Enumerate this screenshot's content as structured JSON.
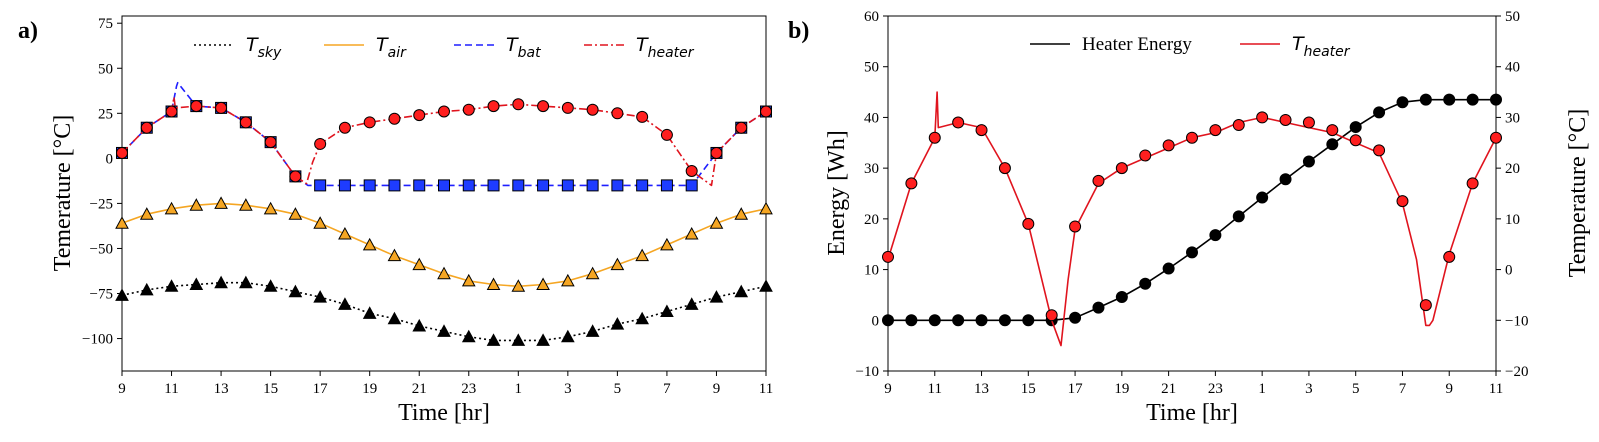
{
  "chart_data": [
    {
      "panel_label": "a)",
      "type": "line",
      "xlabel": "Time [hr]",
      "ylabel": "Temerature [°C]",
      "x_ticks": [
        "9",
        "11",
        "13",
        "15",
        "17",
        "19",
        "21",
        "23",
        "1",
        "3",
        "5",
        "7",
        "9",
        "11"
      ],
      "y_ticks": [
        75,
        50,
        25,
        0,
        -25,
        -50,
        -75,
        -100
      ],
      "xlim": [
        9,
        35
      ],
      "ylim": [
        -118,
        79
      ],
      "grid": false,
      "legend_position": "top",
      "series": [
        {
          "name_main": "T",
          "name_sub": "sky",
          "color": "#000000",
          "style": "dotted",
          "marker": "triangle",
          "marker_fill": "#000000",
          "x": [
            9,
            10,
            11,
            12,
            13,
            14,
            15,
            16,
            17,
            18,
            19,
            20,
            21,
            22,
            23,
            24,
            25,
            26,
            27,
            28,
            29,
            30,
            31,
            32,
            33,
            34,
            35
          ],
          "y": [
            -76,
            -73,
            -71,
            -70,
            -69,
            -69,
            -71,
            -74,
            -77,
            -81,
            -86,
            -89,
            -93,
            -96,
            -99,
            -101,
            -101,
            -101,
            -99,
            -96,
            -92,
            -89,
            -85,
            -81,
            -77,
            -74,
            -71
          ]
        },
        {
          "name_main": "T",
          "name_sub": "air",
          "color": "#f5a623",
          "style": "solid",
          "marker": "triangle",
          "marker_fill": "#f5a623",
          "x": [
            9,
            10,
            11,
            12,
            13,
            14,
            15,
            16,
            17,
            18,
            19,
            20,
            21,
            22,
            23,
            24,
            25,
            26,
            27,
            28,
            29,
            30,
            31,
            32,
            33,
            34,
            35
          ],
          "y": [
            -36,
            -31,
            -28,
            -26,
            -25,
            -26,
            -28,
            -31,
            -36,
            -42,
            -48,
            -54,
            -59,
            -64,
            -68,
            -70,
            -71,
            -70,
            -68,
            -64,
            -59,
            -54,
            -48,
            -42,
            -36,
            -31,
            -28
          ]
        },
        {
          "name_main": "T",
          "name_sub": "bat",
          "color": "#1f1fff",
          "style": "dashed",
          "marker": "square",
          "marker_fill": "#1e3cff",
          "x": [
            9,
            10,
            11,
            11.2,
            11.25,
            12,
            13,
            14,
            15,
            16,
            16.5,
            17,
            18,
            19,
            20,
            21,
            22,
            23,
            24,
            25,
            26,
            27,
            28,
            29,
            30,
            31,
            32,
            33,
            34,
            35
          ],
          "y": [
            3,
            17,
            26,
            40,
            42,
            29,
            28,
            20,
            9,
            -10,
            -15,
            -15,
            -15,
            -15,
            -15,
            -15,
            -15,
            -15,
            -15,
            -15,
            -15,
            -15,
            -15,
            -15,
            -15,
            -15,
            -15,
            3,
            17,
            26
          ],
          "markers_x": [
            9,
            10,
            11,
            12,
            13,
            14,
            15,
            16,
            17,
            18,
            19,
            20,
            21,
            22,
            23,
            24,
            25,
            26,
            27,
            28,
            29,
            30,
            31,
            32,
            33,
            34,
            35
          ],
          "markers_y": [
            3,
            17,
            26,
            29,
            28,
            20,
            9,
            -10,
            -15,
            -15,
            -15,
            -15,
            -15,
            -15,
            -15,
            -15,
            -15,
            -15,
            -15,
            -15,
            -15,
            -15,
            -15,
            -15,
            3,
            17,
            26
          ]
        },
        {
          "name_main": "T",
          "name_sub": "heater",
          "color": "#e0141e",
          "style": "dashdot",
          "marker": "circle",
          "marker_fill": "#ff1f1f",
          "x": [
            9,
            10,
            11,
            11.1,
            11.15,
            12,
            13,
            14,
            15,
            16,
            16.45,
            16.7,
            17,
            18,
            19,
            20,
            21,
            22,
            23,
            24,
            25,
            26,
            27,
            28,
            29,
            30,
            31,
            32,
            32.8,
            33,
            34,
            35
          ],
          "y": [
            3,
            17,
            26,
            34,
            28,
            29,
            28,
            20,
            9,
            -10,
            -14,
            -2,
            8,
            17,
            20,
            22,
            24,
            26,
            27,
            29,
            30,
            29,
            28,
            27,
            25,
            23,
            13,
            -7,
            -15,
            3,
            17,
            26
          ],
          "markers_x": [
            9,
            10,
            11,
            12,
            13,
            14,
            15,
            16,
            17,
            18,
            19,
            20,
            21,
            22,
            23,
            24,
            25,
            26,
            27,
            28,
            29,
            30,
            31,
            32,
            33,
            34,
            35
          ],
          "markers_y": [
            3,
            17,
            26,
            29,
            28,
            20,
            9,
            -10,
            8,
            17,
            20,
            22,
            24,
            26,
            27,
            29,
            30,
            29,
            28,
            27,
            25,
            23,
            13,
            -7,
            3,
            17,
            26
          ]
        }
      ]
    },
    {
      "panel_label": "b)",
      "type": "line",
      "xlabel": "Time [hr]",
      "ylabel": "Energy [Wh]",
      "ylabel_right": "Temperature [°C]",
      "x_ticks": [
        "9",
        "11",
        "13",
        "15",
        "17",
        "19",
        "21",
        "23",
        "1",
        "3",
        "5",
        "7",
        "9",
        "11"
      ],
      "y_ticks": [
        60,
        50,
        40,
        30,
        20,
        10,
        0,
        -10
      ],
      "y_ticks_right": [
        50,
        40,
        30,
        20,
        10,
        0,
        -10,
        -20
      ],
      "xlim": [
        9,
        35
      ],
      "ylim": [
        -10,
        60
      ],
      "ylim_right": [
        -20,
        50
      ],
      "grid": false,
      "legend_position": "top",
      "series": [
        {
          "name": "Heater Energy",
          "axis": "left",
          "color": "#000000",
          "style": "solid",
          "marker": "circle",
          "marker_fill": "#000000",
          "x": [
            9,
            10,
            11,
            12,
            13,
            14,
            15,
            16,
            17,
            18,
            19,
            20,
            21,
            22,
            23,
            24,
            25,
            26,
            27,
            28,
            29,
            30,
            31,
            32,
            33,
            34,
            35
          ],
          "y": [
            0,
            0,
            0,
            0,
            0,
            0,
            0,
            0,
            0.5,
            2.5,
            4.6,
            7.2,
            10.2,
            13.4,
            16.8,
            20.5,
            24.2,
            27.8,
            31.3,
            34.7,
            38.1,
            41,
            43,
            43.5,
            43.5,
            43.5,
            43.5
          ]
        },
        {
          "name_main": "T",
          "name_sub": "heater",
          "axis": "right",
          "color": "#e0141e",
          "style": "solid",
          "marker": "circle",
          "marker_fill": "#ff1f1f",
          "x": [
            9,
            10,
            11,
            11.1,
            11.15,
            12,
            13,
            14,
            15,
            16,
            16.4,
            16.7,
            17,
            18,
            19,
            20,
            21,
            22,
            23,
            24,
            25,
            26,
            27,
            28,
            29,
            30,
            31,
            31.6,
            32,
            32.15,
            32.3,
            33,
            34,
            35
          ],
          "y": [
            2,
            17,
            26,
            35,
            28,
            29,
            28,
            20,
            9,
            -10,
            -15,
            -2,
            8,
            17,
            20,
            22,
            24,
            26,
            27,
            29,
            30,
            29,
            28,
            27,
            25,
            23,
            13,
            2,
            -11,
            -11,
            -10,
            3,
            17,
            26
          ],
          "markers_x": [
            9,
            10,
            11,
            12,
            13,
            14,
            15,
            16,
            17,
            18,
            19,
            20,
            21,
            22,
            23,
            24,
            25,
            26,
            27,
            28,
            29,
            30,
            31,
            32,
            33,
            34,
            35
          ],
          "markers_y": [
            2.5,
            17,
            26,
            29,
            27.5,
            20,
            9,
            -9,
            8.5,
            17.5,
            20,
            22.5,
            24.5,
            26,
            27.5,
            28.5,
            30,
            29.5,
            29,
            27.5,
            25.5,
            23.5,
            13.5,
            -7,
            2.5,
            17,
            26
          ]
        }
      ]
    }
  ]
}
